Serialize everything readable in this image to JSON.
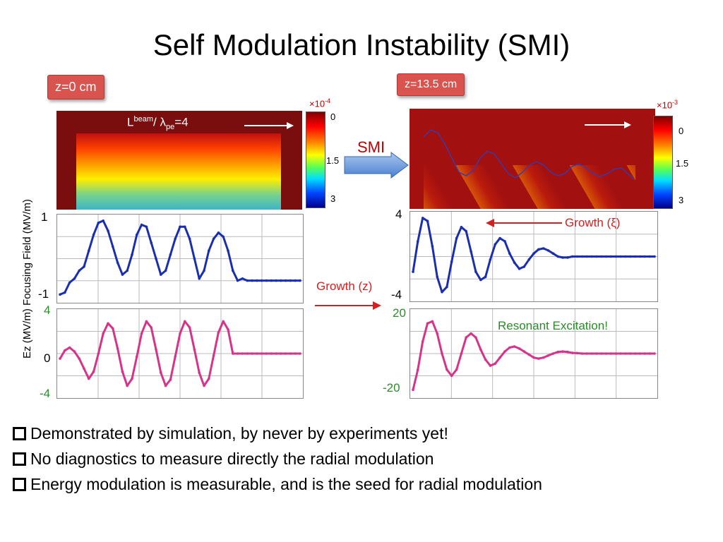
{
  "title": "Self Modulation Instability (SMI)",
  "tags": {
    "left": "z=0 cm",
    "right": "z=13.5 cm"
  },
  "smi_label": "SMI",
  "beam_label": {
    "L": "L",
    "sup": "beam",
    "mid": "/ λ",
    "sub": "pe",
    "end": "=4"
  },
  "colorbar_left": {
    "exp_base": "×10",
    "exp_pow": "-4",
    "ticks": [
      "0",
      "1.5",
      "3"
    ]
  },
  "colorbar_right": {
    "exp_base": "×10",
    "exp_pow": "-3",
    "ticks": [
      "0",
      "1.5",
      "3"
    ]
  },
  "ylabel": "Ez (MV/m) Focusing Field (MV/m)",
  "annotations": {
    "growth_xi": "Growth (ξ)",
    "growth_z": "Growth (z)",
    "resonant": "Resonant Excitation!"
  },
  "bullets": [
    " Demonstrated by simulation, by never by experiments yet!",
    "No diagnostics to measure directly the radial modulation",
    "Energy modulation is measurable, and is the seed for radial modulation"
  ],
  "colors": {
    "blue": "#1a2fae",
    "magenta": "#d6338a",
    "tag": "#d9534f",
    "dark_red": "#7a0e0e"
  },
  "chart_data": [
    {
      "type": "line",
      "name": "focusing-field-z0",
      "ytick_labels": [
        "1",
        "-1"
      ],
      "ylim": [
        -1,
        1
      ],
      "x": [
        0,
        2,
        4,
        6,
        8,
        10,
        12,
        14,
        16,
        18,
        20,
        22,
        24,
        26,
        28,
        30,
        32,
        34,
        36,
        38,
        40,
        42,
        44,
        46,
        48,
        50,
        52,
        54,
        56,
        58,
        60,
        62,
        64,
        66,
        68,
        70,
        72,
        74,
        76,
        78,
        80,
        82,
        84,
        86,
        88,
        90,
        92,
        94,
        96,
        98,
        100
      ],
      "values": [
        -0.9,
        -0.85,
        -0.6,
        -0.5,
        -0.3,
        -0.2,
        0.2,
        0.6,
        0.9,
        0.95,
        0.7,
        0.3,
        -0.1,
        -0.4,
        -0.3,
        0.1,
        0.6,
        0.85,
        0.8,
        0.4,
        0.0,
        -0.4,
        -0.3,
        0.1,
        0.5,
        0.8,
        0.8,
        0.5,
        0.0,
        -0.5,
        -0.3,
        0.2,
        0.5,
        0.65,
        0.55,
        0.2,
        -0.3,
        -0.55,
        -0.5,
        -0.55,
        -0.55,
        -0.55,
        -0.55,
        -0.55,
        -0.55,
        -0.55,
        -0.55,
        -0.55,
        -0.55,
        -0.55,
        -0.55
      ]
    },
    {
      "type": "line",
      "name": "ez-z0",
      "ytick_labels": [
        "4",
        "0",
        "-4"
      ],
      "ylim": [
        -4,
        4
      ],
      "x": [
        0,
        2,
        4,
        6,
        8,
        10,
        12,
        14,
        16,
        18,
        20,
        22,
        24,
        26,
        28,
        30,
        32,
        34,
        36,
        38,
        40,
        42,
        44,
        46,
        48,
        50,
        52,
        54,
        56,
        58,
        60,
        62,
        64,
        66,
        68,
        70,
        72,
        74,
        76,
        78,
        80,
        82,
        84,
        86,
        88,
        90,
        92,
        94,
        96,
        98,
        100
      ],
      "values": [
        -0.5,
        0.3,
        0.6,
        0.2,
        -0.5,
        -1.5,
        -2.5,
        -1.8,
        0.0,
        2.0,
        3.0,
        2.5,
        0.5,
        -1.8,
        -3.2,
        -2.5,
        -0.3,
        2.0,
        3.2,
        2.6,
        0.4,
        -1.9,
        -3.2,
        -2.6,
        -0.3,
        2.0,
        3.2,
        2.6,
        0.4,
        -1.9,
        -3.2,
        -2.5,
        -0.2,
        2.1,
        3.2,
        2.4,
        0.0,
        0.0,
        0.0,
        0.0,
        0.0,
        0.0,
        0.0,
        0.0,
        0.0,
        0.0,
        0.0,
        0.0,
        0.0,
        0.0,
        0.0
      ]
    },
    {
      "type": "line",
      "name": "focusing-field-z13.5",
      "ytick_labels": [
        "4",
        "-4"
      ],
      "ylim": [
        -4,
        4
      ],
      "x": [
        0,
        2,
        4,
        6,
        8,
        10,
        12,
        14,
        16,
        18,
        20,
        22,
        24,
        26,
        28,
        30,
        32,
        34,
        36,
        38,
        40,
        42,
        44,
        46,
        48,
        50,
        52,
        54,
        56,
        58,
        60,
        62,
        64,
        66,
        68,
        70,
        72,
        74,
        76,
        78,
        80,
        82,
        84,
        86,
        88,
        90,
        92,
        94,
        96,
        98,
        100
      ],
      "values": [
        -1.5,
        1.5,
        3.8,
        3.5,
        1.0,
        -2.0,
        -3.5,
        -3.0,
        -0.5,
        1.8,
        2.9,
        2.5,
        0.5,
        -1.5,
        -2.3,
        -2.0,
        -0.3,
        1.2,
        1.8,
        1.5,
        0.3,
        -0.6,
        -1.2,
        -1.0,
        -0.3,
        0.3,
        0.7,
        0.8,
        0.6,
        0.3,
        0.0,
        -0.1,
        -0.1,
        0.0,
        0.0,
        0.0,
        0.0,
        0.0,
        0.0,
        0.0,
        0.0,
        0.0,
        0.0,
        0.0,
        0.0,
        0.0,
        0.0,
        0.0,
        0.0,
        0.0,
        0.0
      ]
    },
    {
      "type": "line",
      "name": "ez-z13.5",
      "ytick_labels": [
        "20",
        "-20"
      ],
      "ylim": [
        -20,
        20
      ],
      "x": [
        0,
        2,
        4,
        6,
        8,
        10,
        12,
        14,
        16,
        18,
        20,
        22,
        24,
        26,
        28,
        30,
        32,
        34,
        36,
        38,
        40,
        42,
        44,
        46,
        48,
        50,
        52,
        54,
        56,
        58,
        60,
        62,
        64,
        66,
        68,
        70,
        72,
        74,
        76,
        78,
        80,
        82,
        84,
        86,
        88,
        90,
        92,
        94,
        96,
        98,
        100
      ],
      "values": [
        -18,
        -8,
        6,
        15,
        16,
        10,
        0,
        -8,
        -11,
        -8,
        0,
        8,
        10,
        8,
        2,
        -3,
        -6,
        -5,
        -2,
        1,
        3,
        3.5,
        2.5,
        1,
        -0.5,
        -2,
        -2.5,
        -2,
        -1,
        0,
        0.8,
        1,
        0.8,
        0.3,
        0.2,
        0,
        0,
        0,
        0,
        0,
        0,
        0,
        0,
        0,
        0,
        0,
        0,
        0,
        0,
        0,
        0
      ]
    }
  ]
}
